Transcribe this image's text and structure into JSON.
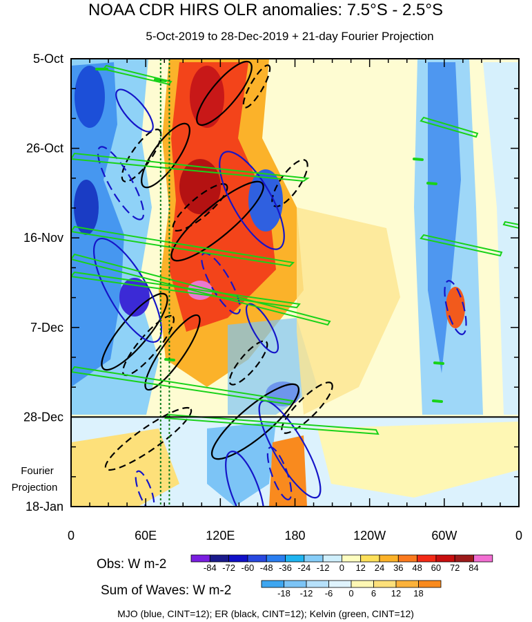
{
  "chart_data": {
    "type": "heatmap",
    "title": "NOAA CDR HIRS OLR anomalies: 7.5°S - 2.5°S",
    "subtitle": "5-Oct-2019 to 28-Dec-2019 + 21-day Fourier Projection",
    "y_ticks": [
      "5-Oct",
      "26-Oct",
      "16-Nov",
      "7-Dec",
      "28-Dec",
      "18-Jan"
    ],
    "y_tick_days": [
      0,
      21,
      42,
      63,
      84,
      105
    ],
    "y_range_days": [
      0,
      105
    ],
    "projection_start_day": 84,
    "projection_label_line1": "Fourier",
    "projection_label_line2": "Projection",
    "x_ticks": [
      "0",
      "60E",
      "120E",
      "180",
      "120W",
      "60W",
      "0"
    ],
    "x_tick_lons": [
      0,
      60,
      120,
      180,
      240,
      300,
      360
    ],
    "x_range_lon": [
      0,
      360
    ],
    "reference_lines_lon": [
      72,
      79
    ],
    "obs_colorbar": {
      "label": "Obs: W m-2",
      "ticks": [
        "-84",
        "-72",
        "-60",
        "-48",
        "-36",
        "-24",
        "-12",
        "0",
        "12",
        "24",
        "36",
        "48",
        "60",
        "72",
        "84"
      ],
      "colors": [
        "#7a1ee0",
        "#1a1a8c",
        "#1010c8",
        "#2848e0",
        "#2a7ef0",
        "#1fb4f0",
        "#86cdf8",
        "#cfeffc",
        "#fefec0",
        "#fde05a",
        "#fcb228",
        "#fb7a1e",
        "#f32a16",
        "#c80e0e",
        "#9c1a1a",
        "#f26ed2"
      ]
    },
    "waves_colorbar": {
      "label": "Sum of Waves: W m-2",
      "ticks": [
        "-18",
        "-12",
        "-6",
        "0",
        "6",
        "12",
        "18"
      ],
      "colors": [
        "#3ea6f0",
        "#7cc4f6",
        "#b6e0fa",
        "#dff3fd",
        "#fef7b4",
        "#fde07a",
        "#fcb23a",
        "#f98a1e"
      ]
    },
    "footer": "MJO (blue, CINT=12); ER (black, CINT=12); Kelvin (green, CINT=12)",
    "series": [
      {
        "name": "MJO",
        "color": "#1515c8",
        "cint": 12
      },
      {
        "name": "ER",
        "color": "#000000",
        "cint": 12
      },
      {
        "name": "Kelvin",
        "color": "#19d219",
        "cint": 12
      }
    ]
  }
}
